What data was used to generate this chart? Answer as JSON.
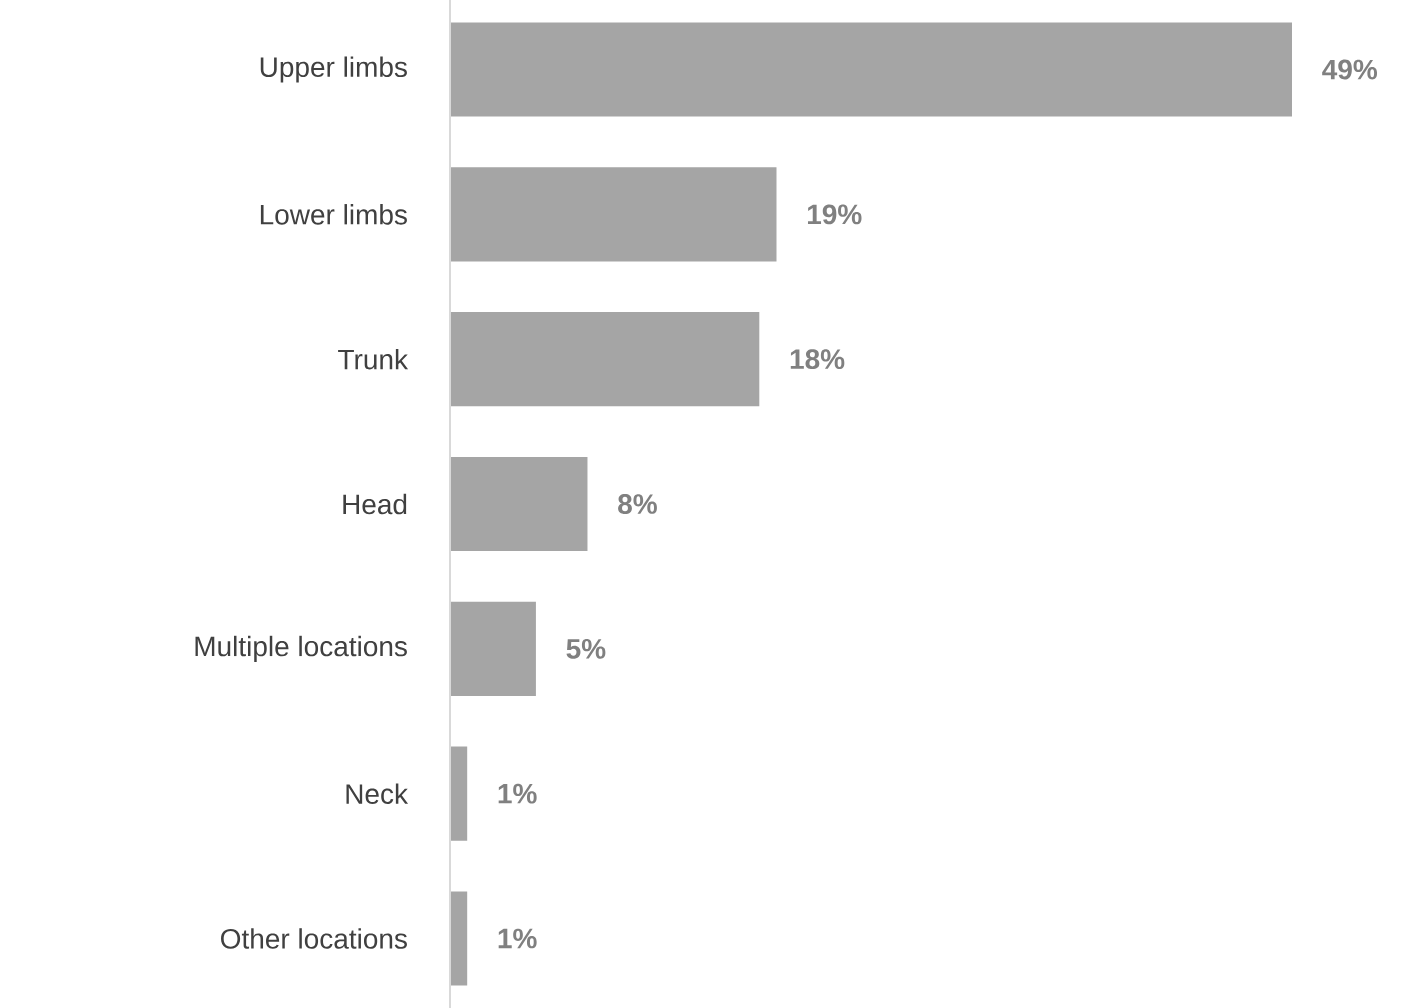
{
  "chart_data": {
    "type": "bar",
    "orientation": "horizontal",
    "categories": [
      "Upper limbs",
      "Lower limbs",
      "Trunk",
      "Head",
      "Multiple locations",
      "Neck",
      "Other locations"
    ],
    "values": [
      49,
      19,
      18,
      8,
      5,
      1,
      1
    ],
    "value_labels": [
      "49%",
      "19%",
      "18%",
      "8%",
      "5%",
      "1%",
      "1%"
    ],
    "color": "#a5a5a5"
  }
}
